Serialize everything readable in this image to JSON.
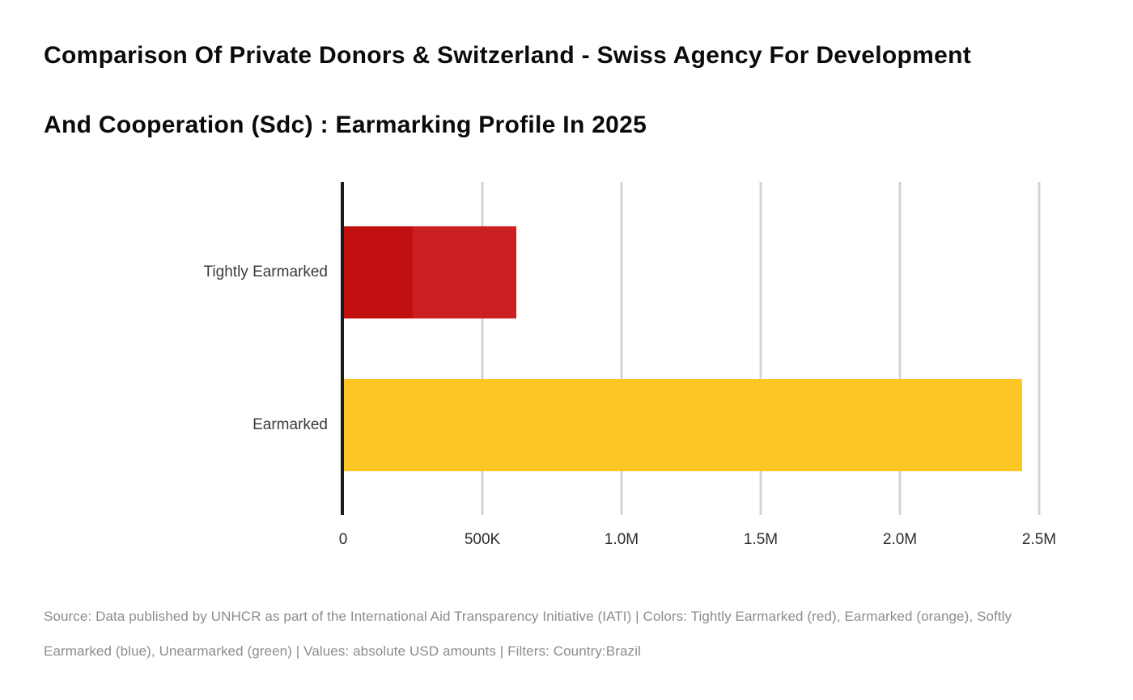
{
  "page": {
    "background": "#ffffff"
  },
  "title": {
    "line1": "Comparison Of Private Donors & Switzerland - Swiss Agency For Development",
    "line2": "And Cooperation (Sdc) : Earmarking Profile In 2025"
  },
  "footer": {
    "line1": "Source: Data published by UNHCR as part of the International Aid Transparency Initiative (IATI) | Colors: Tightly Earmarked (red), Earmarked (orange), Softly",
    "line2": "Earmarked (blue), Unearmarked (green) | Values: absolute USD amounts | Filters: Country:Brazil"
  },
  "colors": {
    "tightly_earmarked_overlap": "#bf0607",
    "tightly_earmarked": "#c9191b",
    "earmarked": "#fdc41d",
    "axis_line": "#1c1c1c",
    "gridline": "#d4d4d4",
    "category_label": "#3b3b3b",
    "tick_label": "#2d2d2d",
    "title_text": "#0a0a0a",
    "footer_text": "#8c8c8c"
  },
  "chart_data": {
    "type": "bar",
    "orientation": "horizontal",
    "title": "Comparison Of Private Donors & Switzerland - Swiss Agency For Development And Cooperation (Sdc) : Earmarking Profile In 2025",
    "categories": [
      "Tightly Earmarked",
      "Earmarked"
    ],
    "values_unit": "absolute USD amounts",
    "grid": "vertical",
    "legend_position": "none",
    "x_axis": {
      "min": 0,
      "max_visible_tick": 2500000,
      "ticks": [
        {
          "label": "0",
          "value": 0
        },
        {
          "label": "500K",
          "value": 500000
        },
        {
          "label": "1.0M",
          "value": 1000000
        },
        {
          "label": "1.5M",
          "value": 1500000
        },
        {
          "label": "2.0M",
          "value": 2000000
        },
        {
          "label": "2.5M",
          "value": 2500000
        }
      ]
    },
    "bars": [
      {
        "category": "Tightly Earmarked",
        "total_value": 623000,
        "segments": [
          {
            "from": 0,
            "to": 250000,
            "color_key": "tightly_earmarked_overlap"
          },
          {
            "from": 250000,
            "to": 623000,
            "color_key": "tightly_earmarked"
          }
        ]
      },
      {
        "category": "Earmarked",
        "total_value": 2440000,
        "segments": [
          {
            "from": 0,
            "to": 2440000,
            "color_key": "earmarked"
          }
        ]
      }
    ]
  }
}
